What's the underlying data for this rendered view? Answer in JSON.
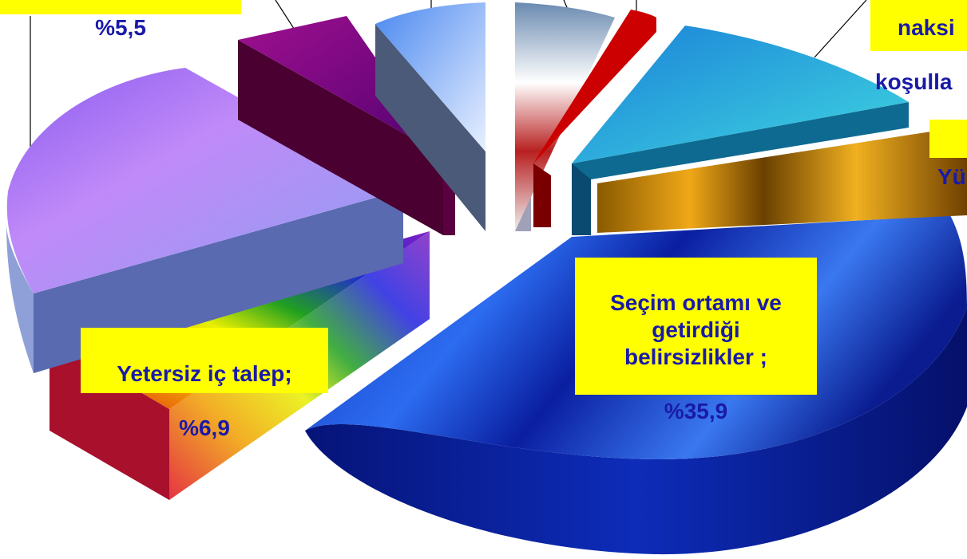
{
  "chart_data": {
    "type": "pie",
    "title": "",
    "slices": [
      {
        "label": "Seçim ortamı ve getirdiği belirsizlikler",
        "value_text": "%35,9",
        "value": 35.9,
        "color": "#0a1ea8"
      },
      {
        "label": "Yetersiz iç talep",
        "value_text": "%6,9",
        "value": 6.9,
        "color": "#f0c000"
      },
      {
        "label": "",
        "value_text": "",
        "value": 21.0,
        "color": "#a97ef0"
      },
      {
        "label": "",
        "value_text": "%5,5",
        "value": 5.5,
        "color": "#800060"
      },
      {
        "label": "",
        "value_text": "",
        "value": 5.0,
        "color": "#6a9ce8"
      },
      {
        "label": "",
        "value_text": "",
        "value": 4.5,
        "color": "#c98080"
      },
      {
        "label": "",
        "value_text": "",
        "value": 2.0,
        "color": "#c00000"
      },
      {
        "label": "",
        "value_text": "",
        "value": 11.0,
        "color": "#20b8d8"
      },
      {
        "label": "",
        "value_text": "",
        "value": 8.2,
        "color": "#c08a10"
      }
    ],
    "visible_label_fragments": {
      "top_left": "%5,5",
      "top_right_line1": "naksi",
      "top_right_line2": "koşulla",
      "right_edge": "Yü"
    },
    "legend": "none"
  }
}
